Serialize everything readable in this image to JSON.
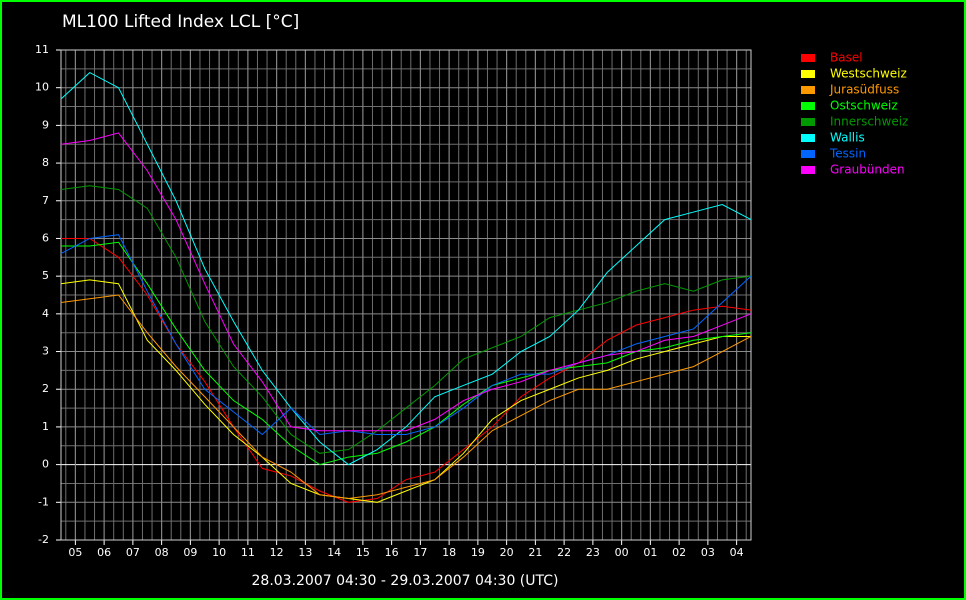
{
  "chart_data": {
    "type": "line",
    "title": "ML100 Lifted Index LCL [°C]",
    "x_label": "28.03.2007 04:30 - 29.03.2007 04:30  (UTC)",
    "x": [
      0,
      1,
      2,
      3,
      4,
      5,
      6,
      7,
      8,
      9,
      10,
      11,
      12,
      13,
      14,
      15,
      16,
      17,
      18,
      19,
      20,
      21,
      22,
      23,
      24
    ],
    "xlim": [
      0,
      24
    ],
    "xticks": [
      {
        "value": 0.5,
        "label": "05"
      },
      {
        "value": 1.5,
        "label": "06"
      },
      {
        "value": 2.5,
        "label": "07"
      },
      {
        "value": 3.5,
        "label": "08"
      },
      {
        "value": 4.5,
        "label": "09"
      },
      {
        "value": 5.5,
        "label": "10"
      },
      {
        "value": 6.5,
        "label": "11"
      },
      {
        "value": 7.5,
        "label": "12"
      },
      {
        "value": 8.5,
        "label": "13"
      },
      {
        "value": 9.5,
        "label": "14"
      },
      {
        "value": 10.5,
        "label": "15"
      },
      {
        "value": 11.5,
        "label": "16"
      },
      {
        "value": 12.5,
        "label": "17"
      },
      {
        "value": 13.5,
        "label": "18"
      },
      {
        "value": 14.5,
        "label": "19"
      },
      {
        "value": 15.5,
        "label": "20"
      },
      {
        "value": 16.5,
        "label": "21"
      },
      {
        "value": 17.5,
        "label": "22"
      },
      {
        "value": 18.5,
        "label": "23"
      },
      {
        "value": 19.5,
        "label": "00"
      },
      {
        "value": 20.5,
        "label": "01"
      },
      {
        "value": 21.5,
        "label": "02"
      },
      {
        "value": 22.5,
        "label": "03"
      },
      {
        "value": 23.5,
        "label": "04"
      }
    ],
    "ylim": [
      -2,
      11
    ],
    "yticks": [
      -2,
      -1,
      0,
      1,
      2,
      3,
      4,
      5,
      6,
      7,
      8,
      9,
      10,
      11
    ],
    "grid": true,
    "minor_grid_divisions": {
      "x": 3,
      "y": 2
    },
    "legend": "right",
    "series": [
      {
        "name": "Basel",
        "color": "#ff0000",
        "values": [
          6.0,
          6.0,
          5.5,
          4.5,
          3.2,
          2.2,
          1.0,
          -0.1,
          -0.3,
          -0.7,
          -1.0,
          -0.9,
          -0.4,
          -0.2,
          0.4,
          1.0,
          1.8,
          2.3,
          2.7,
          3.3,
          3.7,
          3.9,
          4.1,
          4.2,
          4.1
        ]
      },
      {
        "name": "Westschweiz",
        "color": "#ffff00",
        "values": [
          4.8,
          4.9,
          4.8,
          3.3,
          2.5,
          1.6,
          0.8,
          0.2,
          -0.5,
          -0.8,
          -0.9,
          -1.0,
          -0.7,
          -0.4,
          0.3,
          1.2,
          1.7,
          2.0,
          2.3,
          2.5,
          2.8,
          3.0,
          3.2,
          3.4,
          3.4
        ]
      },
      {
        "name": "Jurasüdfuss",
        "color": "#ff9900",
        "values": [
          4.3,
          4.4,
          4.5,
          3.5,
          2.6,
          1.8,
          1.0,
          0.2,
          -0.2,
          -0.8,
          -0.9,
          -0.8,
          -0.6,
          -0.4,
          0.2,
          0.9,
          1.3,
          1.7,
          2.0,
          2.0,
          2.2,
          2.4,
          2.6,
          3.0,
          3.4
        ]
      },
      {
        "name": "Ostschweiz",
        "color": "#00ff00",
        "values": [
          5.8,
          5.8,
          5.9,
          4.8,
          3.6,
          2.5,
          1.7,
          1.2,
          0.5,
          0.0,
          0.2,
          0.3,
          0.6,
          1.0,
          1.6,
          2.1,
          2.3,
          2.5,
          2.6,
          2.7,
          3.0,
          3.1,
          3.3,
          3.4,
          3.5
        ]
      },
      {
        "name": "Innerschweiz",
        "color": "#009900",
        "values": [
          7.3,
          7.4,
          7.3,
          6.8,
          5.5,
          3.8,
          2.6,
          1.8,
          0.8,
          0.3,
          0.4,
          0.9,
          1.5,
          2.1,
          2.8,
          3.1,
          3.4,
          3.9,
          4.1,
          4.3,
          4.6,
          4.8,
          4.6,
          4.9,
          5.0
        ]
      },
      {
        "name": "Wallis",
        "color": "#00ffff",
        "values": [
          9.7,
          10.4,
          10.0,
          8.5,
          7.0,
          5.2,
          3.8,
          2.5,
          1.5,
          0.6,
          0.0,
          0.4,
          1.0,
          1.8,
          2.1,
          2.4,
          3.0,
          3.4,
          4.1,
          5.1,
          5.8,
          6.5,
          6.7,
          6.9,
          6.5
        ]
      },
      {
        "name": "Tessin",
        "color": "#0066ff",
        "values": [
          5.6,
          6.0,
          6.1,
          4.6,
          3.2,
          2.0,
          1.4,
          0.8,
          1.5,
          0.8,
          0.9,
          0.8,
          0.8,
          1.0,
          1.5,
          2.1,
          2.4,
          2.4,
          2.7,
          2.9,
          3.2,
          3.4,
          3.6,
          4.3,
          5.0
        ]
      },
      {
        "name": "Graubünden",
        "color": "#ff00ff",
        "values": [
          8.5,
          8.6,
          8.8,
          7.8,
          6.5,
          4.8,
          3.2,
          2.2,
          1.0,
          0.9,
          0.9,
          0.9,
          0.9,
          1.2,
          1.7,
          2.0,
          2.2,
          2.5,
          2.7,
          2.9,
          3.0,
          3.3,
          3.4,
          3.7,
          4.0
        ]
      }
    ]
  }
}
